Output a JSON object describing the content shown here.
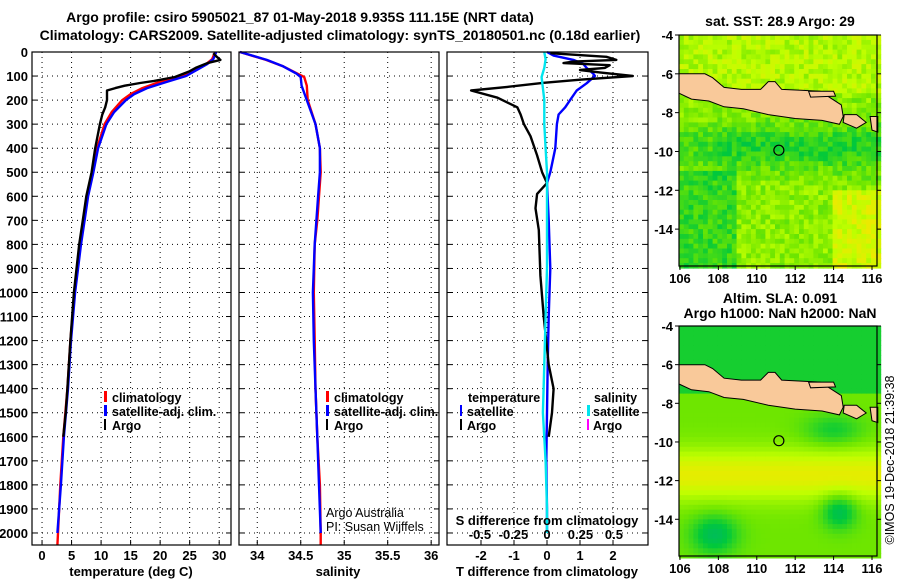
{
  "header": {
    "title_line1": "Argo profile: csiro 5905021_87 01-May-2018 9.935S 111.15E (NRT data)",
    "title_line2": "Climatology: CARS2009. Satellite-adjusted climatology: synTS_20180501.nc (0.18d earlier)"
  },
  "credits": {
    "argo": "Argo Australia",
    "pi": "PI: Susan Wijffels",
    "stamp": "©IMOS 19-Dec-2018 21:39:38"
  },
  "colors": {
    "climatology": "#ff0000",
    "satellite": "#0000ff",
    "argo": "#000000",
    "sal_satellite": "#00e5ee",
    "sal_argo": "#ff00ff",
    "land": "#f9c99a"
  },
  "chart_data": [
    {
      "type": "line",
      "id": "temperature",
      "xlabel": "temperature (deg C)",
      "ylabel": "",
      "xlim": [
        -1.7,
        32.0
      ],
      "ylim": [
        2050,
        0
      ],
      "xticks": [
        0,
        5,
        10,
        15,
        20,
        25,
        30
      ],
      "yticks": [
        0,
        100,
        200,
        300,
        400,
        500,
        600,
        700,
        800,
        900,
        1000,
        1100,
        1200,
        1300,
        1400,
        1500,
        1600,
        1700,
        1800,
        1900,
        2000
      ],
      "legend": [
        "climatology",
        "satellite-adj. clim.",
        "Argo"
      ],
      "series": [
        {
          "name": "climatology",
          "color": "#ff0000",
          "depth": [
            0,
            30,
            50,
            75,
            100,
            125,
            150,
            175,
            200,
            250,
            300,
            400,
            500,
            600,
            700,
            800,
            1000,
            1200,
            1400,
            1600,
            1800,
            2000,
            2050
          ],
          "values": [
            29.3,
            28.8,
            27.8,
            25.8,
            23.6,
            19.8,
            17.0,
            15.0,
            13.6,
            11.8,
            10.6,
            9.3,
            8.5,
            7.7,
            7.1,
            6.5,
            5.5,
            4.8,
            4.3,
            3.6,
            3.1,
            2.7,
            2.6
          ]
        },
        {
          "name": "satellite-adj. clim.",
          "color": "#0000ff",
          "depth": [
            0,
            30,
            50,
            75,
            100,
            125,
            150,
            175,
            200,
            250,
            300,
            400,
            500,
            600,
            700,
            800,
            1000,
            1200,
            1400,
            1600,
            1800,
            2000
          ],
          "values": [
            29.5,
            29.0,
            28.0,
            26.2,
            24.4,
            21.0,
            17.8,
            15.6,
            14.2,
            12.2,
            10.9,
            9.5,
            8.7,
            7.8,
            7.2,
            6.6,
            5.6,
            4.9,
            4.4,
            3.7,
            3.2,
            2.6
          ]
        },
        {
          "name": "Argo",
          "color": "#000000",
          "depth": [
            5,
            20,
            33,
            46,
            66,
            80,
            104,
            120,
            129,
            140,
            150,
            160,
            200,
            230,
            260,
            300,
            400,
            500,
            600,
            700,
            800,
            1000,
            1200,
            1400,
            1500,
            1600
          ],
          "values": [
            29.0,
            29.6,
            30.2,
            28.0,
            26.0,
            25.0,
            22.5,
            19.0,
            16.6,
            14.0,
            12.4,
            11.0,
            11.0,
            10.7,
            10.2,
            9.8,
            9.0,
            8.4,
            7.5,
            6.9,
            6.3,
            5.4,
            4.8,
            4.3,
            4.0,
            3.6
          ]
        }
      ]
    },
    {
      "type": "line",
      "id": "salinity",
      "xlabel": "salinity",
      "xlim": [
        33.79,
        36.09
      ],
      "ylim": [
        2050,
        0
      ],
      "xticks": [
        34,
        34.5,
        35,
        35.5,
        36
      ],
      "legend": [
        "climatology",
        "satellite-adj. clim.",
        "Argo"
      ],
      "series": [
        {
          "name": "climatology",
          "color": "#ff0000",
          "depth": [
            0,
            33,
            60,
            90,
            104,
            140,
            200,
            300,
            400,
            500,
            600,
            700,
            800,
            1000,
            1200,
            1400,
            1600,
            1800,
            2000,
            2050
          ],
          "values": [
            33.8,
            34.1,
            34.3,
            34.46,
            34.54,
            34.57,
            34.58,
            34.67,
            34.72,
            34.73,
            34.71,
            34.69,
            34.66,
            34.65,
            34.66,
            34.67,
            34.69,
            34.72,
            34.73,
            34.73
          ]
        },
        {
          "name": "satellite-adj. clim.",
          "color": "#0000ff",
          "depth": [
            0,
            33,
            60,
            90,
            104,
            140,
            200,
            300,
            400,
            500,
            600,
            700,
            800,
            1000,
            1200,
            1400,
            1600,
            1800,
            2000
          ],
          "values": [
            33.8,
            34.11,
            34.3,
            34.45,
            34.5,
            34.51,
            34.57,
            34.67,
            34.72,
            34.72,
            34.7,
            34.68,
            34.66,
            34.64,
            34.65,
            34.67,
            34.69,
            34.71,
            34.73
          ]
        }
      ]
    },
    {
      "type": "line",
      "id": "difference",
      "xlabel": "T difference from climatology",
      "x2label": "S difference from climatology",
      "xlim": [
        -3.03,
        3.06
      ],
      "x2lim": [
        -0.746,
        0.754
      ],
      "ylim": [
        2050,
        0
      ],
      "xticks": [
        -2,
        -1,
        0,
        1,
        2
      ],
      "x2ticks": [
        "-0.5",
        "-0.25",
        "0",
        "0.25",
        "0.5"
      ],
      "legend_temperature": {
        "title": "temperature",
        "items": [
          "satellite",
          "Argo"
        ]
      },
      "legend_salinity": {
        "title": "salinity",
        "items": [
          "satellite",
          "Argo"
        ]
      },
      "series": [
        {
          "name": "T satellite",
          "axis": "T",
          "color": "#0000ff",
          "depth": [
            0,
            15,
            33,
            50,
            66,
            90,
            100,
            130,
            160,
            200,
            230,
            260,
            300,
            400,
            500,
            545,
            700,
            900,
            1100,
            1300,
            1500,
            1700,
            1900,
            2000
          ],
          "values": [
            0.0,
            0.2,
            0.8,
            1.1,
            1.2,
            1.4,
            1.45,
            1.2,
            0.9,
            0.7,
            0.55,
            0.35,
            0.3,
            0.25,
            0.1,
            0.0,
            0.05,
            0.1,
            0.05,
            0.02,
            0.0,
            -0.02,
            0.0,
            0.0
          ]
        },
        {
          "name": "T Argo",
          "axis": "T",
          "color": "#000000",
          "depth": [
            5,
            20,
            33,
            40,
            46,
            55,
            66,
            75,
            85,
            100,
            115,
            128,
            145,
            160,
            190,
            230,
            260,
            300,
            350,
            430,
            500,
            545,
            590,
            650,
            740,
            930,
            1100,
            1300,
            1400,
            1500,
            1600
          ],
          "values": [
            0.1,
            1.8,
            2.1,
            0.8,
            0.5,
            1.9,
            1.75,
            1.0,
            1.6,
            2.6,
            1.0,
            -0.1,
            -1.2,
            -2.3,
            -1.5,
            -0.9,
            -0.8,
            -0.7,
            -0.5,
            -0.3,
            -0.15,
            0.0,
            -0.3,
            -0.35,
            -0.25,
            -0.2,
            -0.1,
            0.05,
            0.2,
            0.15,
            0.05
          ]
        },
        {
          "name": "S satellite",
          "axis": "S",
          "color": "#00e5ee",
          "depth": [
            0,
            30,
            66,
            104,
            150,
            200,
            300,
            400,
            500,
            700,
            900,
            1100,
            1300,
            1500,
            1700,
            1900,
            2000
          ],
          "values": [
            -0.02,
            -0.01,
            -0.02,
            -0.04,
            -0.03,
            -0.02,
            -0.02,
            -0.01,
            0.0,
            0.0,
            0.0,
            -0.01,
            -0.02,
            -0.03,
            -0.01,
            0.0,
            0.0
          ]
        }
      ]
    },
    {
      "type": "heatmap",
      "id": "sst-map",
      "title": "sat. SST: 28.9 Argo: 29",
      "xlim": [
        105.95,
        116.26
      ],
      "ylim": [
        -15.9,
        -4
      ],
      "xticks": [
        106,
        108,
        110,
        112,
        114,
        116
      ],
      "yticks": [
        -4,
        -6,
        -8,
        -10,
        -12,
        -14
      ],
      "argo_position": [
        111.15,
        -9.935
      ]
    },
    {
      "type": "heatmap",
      "id": "sla-map",
      "title": "Altim. SLA: 0.091",
      "subtitle": "Argo h1000: NaN h2000: NaN",
      "xlim": [
        105.95,
        116.26
      ],
      "ylim": [
        -15.9,
        -4
      ],
      "xticks": [
        106,
        108,
        110,
        112,
        114,
        116
      ],
      "yticks": [
        -4,
        -6,
        -8,
        -10,
        -12,
        -14
      ],
      "argo_position": [
        111.15,
        -9.935
      ]
    }
  ]
}
